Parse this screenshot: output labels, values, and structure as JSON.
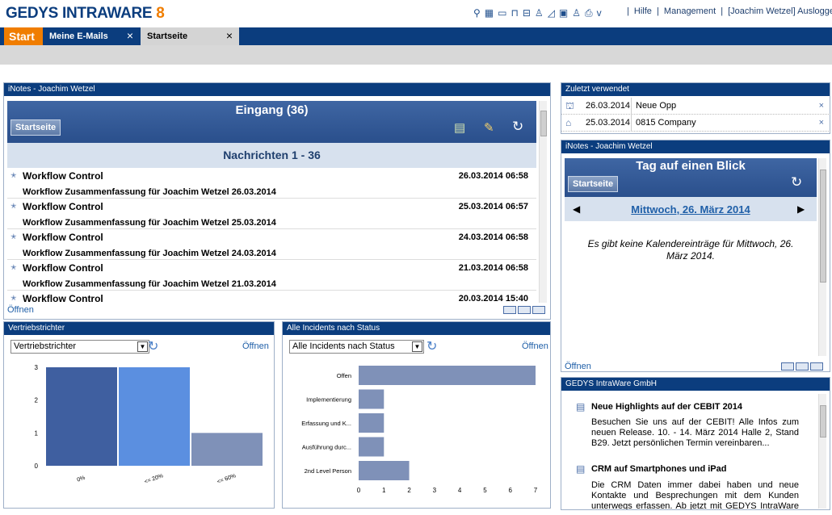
{
  "app": {
    "logo_text": "GEDYS INTRAWARE",
    "logo_num": "8"
  },
  "topbar": {
    "icons": [
      "task-icon",
      "calendar-icon",
      "folder-icon",
      "cart-icon",
      "briefcase-icon",
      "contact-icon",
      "document-icon",
      "window-icon",
      "user-icon",
      "print-icon"
    ],
    "print_dropdown": "v",
    "links": [
      "Hilfe",
      "Management",
      "[Joachim Wetzel] Ausloggen"
    ]
  },
  "tabs": [
    {
      "label": "Start"
    },
    {
      "label": "Meine E-Mails",
      "close": "×"
    },
    {
      "label": "Startseite",
      "close": "×"
    }
  ],
  "inotes_main": {
    "header": "iNotes - Joachim Wetzel",
    "title": "Eingang (36)",
    "home_button": "Startseite",
    "subheader": "Nachrichten 1 - 36",
    "messages": [
      {
        "from": "Workflow Control",
        "date": "26.03.2014 06:58",
        "subject": "Workflow Zusammenfassung für Joachim Wetzel 26.03.2014"
      },
      {
        "from": "Workflow Control",
        "date": "25.03.2014 06:57",
        "subject": "Workflow Zusammenfassung für Joachim Wetzel 25.03.2014"
      },
      {
        "from": "Workflow Control",
        "date": "24.03.2014 06:58",
        "subject": "Workflow Zusammenfassung für Joachim Wetzel 24.03.2014"
      },
      {
        "from": "Workflow Control",
        "date": "21.03.2014 06:58",
        "subject": "Workflow Zusammenfassung für Joachim Wetzel 21.03.2014"
      },
      {
        "from": "Workflow Control",
        "date": "20.03.2014 15:40",
        "subject": ""
      }
    ],
    "open_link": "Öffnen"
  },
  "funnel": {
    "header": "Vertriebstrichter",
    "select_value": "Vertriebstrichter",
    "open_link": "Öffnen"
  },
  "incidents": {
    "header": "Alle Incidents nach Status",
    "select_value": "Alle Incidents nach Status",
    "open_link": "Öffnen"
  },
  "chart_data": [
    {
      "type": "bar",
      "categories": [
        "0%",
        "<= 20%",
        "<= 60%"
      ],
      "values": [
        3,
        3,
        1
      ],
      "ylim": [
        0,
        3
      ],
      "yticks": [
        "0",
        "1",
        "2",
        "3"
      ],
      "colors": [
        "#3f5fa0",
        "#5b8fe0",
        "#7f91b8"
      ]
    },
    {
      "type": "bar",
      "orientation": "horizontal",
      "categories": [
        "Offen",
        "Implementierung",
        "Erfassung und K...",
        "Ausführung durc...",
        "2nd Level Person"
      ],
      "values": [
        7,
        1,
        1,
        1,
        2
      ],
      "xlim": [
        0,
        7
      ],
      "xticks": [
        "0",
        "1",
        "2",
        "3",
        "4",
        "5",
        "6",
        "7"
      ],
      "colors": [
        "#7f91b8"
      ]
    }
  ],
  "recent": {
    "header": "Zuletzt verwendet",
    "items": [
      {
        "icon": "bank-icon",
        "date": "26.03.2014",
        "name": "Neue Opp",
        "remove": "×"
      },
      {
        "icon": "company-icon",
        "date": "25.03.2014",
        "name": "0815 Company",
        "remove": "×"
      }
    ]
  },
  "inotes_day": {
    "header": "iNotes - Joachim Wetzel",
    "title": "Tag auf einen Blick",
    "home_button": "Startseite",
    "date_link": "Mittwoch, 26. März 2014",
    "prev": "◀",
    "next": "▶",
    "empty_text": "Es gibt keine Kalendereinträge für Mittwoch, 26. März 2014.",
    "open_link": "Öffnen"
  },
  "news": {
    "header": "GEDYS IntraWare GmbH",
    "items": [
      {
        "title": "Neue Highlights auf der CEBIT 2014",
        "text": "Besuchen Sie uns auf der CEBIT! Alle Infos zum neuen Release. 10. - 14. März 2014 Halle 2, Stand B29. Jetzt persönlichen Termin vereinbaren..."
      },
      {
        "title": "CRM auf Smartphones und iPad",
        "text": "Die CRM Daten immer dabei haben und neue Kontakte und Besprechungen mit dem Kunden unterwegs erfassen. Ab jetzt mit GEDYS IntraWare go mobile. Hier"
      }
    ]
  }
}
